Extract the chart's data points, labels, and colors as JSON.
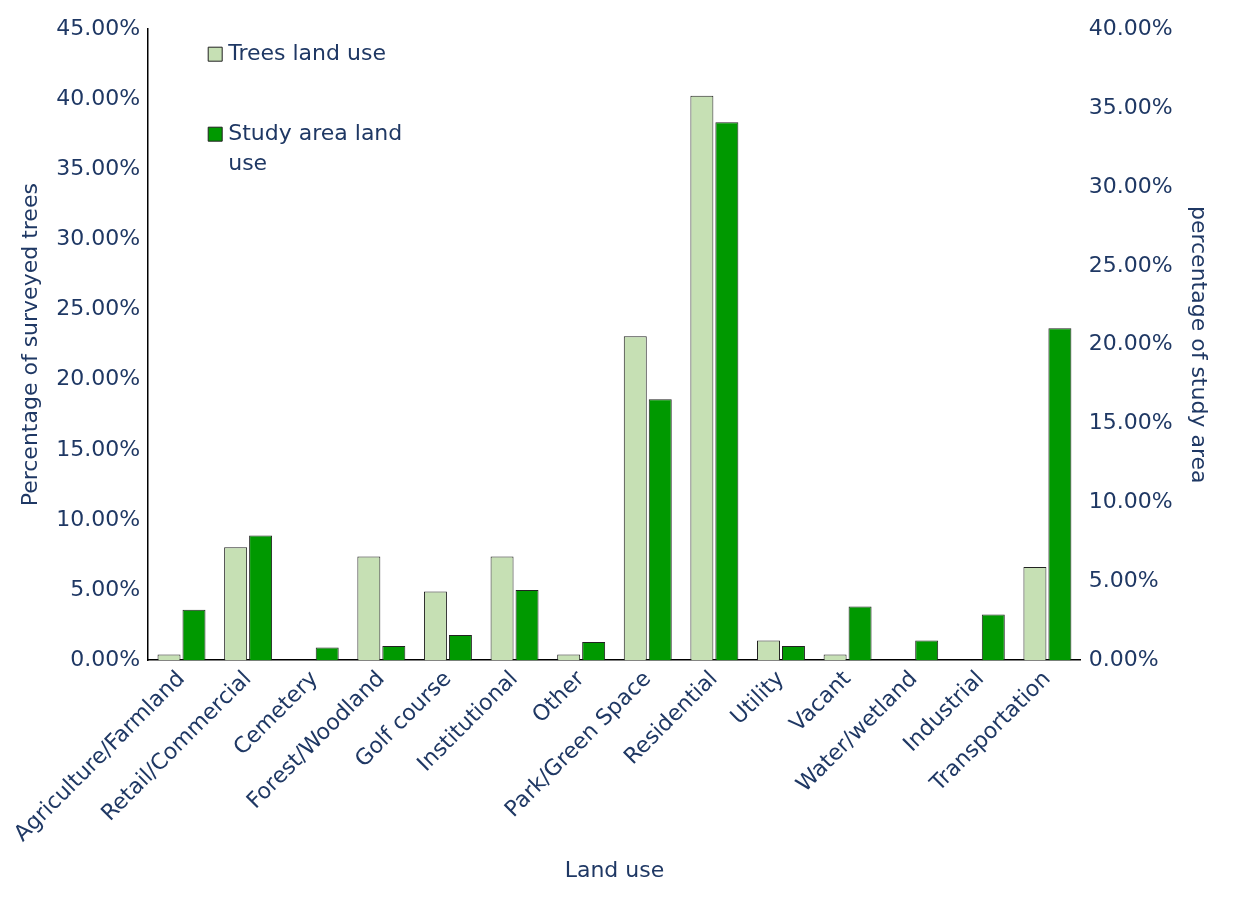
{
  "chart_data": {
    "type": "bar",
    "xlabel": "Land use",
    "ylabel": "Percentage of surveyed trees",
    "y2label": "percentage of study area",
    "categories": [
      "Agriculture/Farmland",
      "Retail/Commercial",
      "Cemetery",
      "Forest/Woodland",
      "Golf course",
      "Institutional",
      "Other",
      "Park/Green Space",
      "Residential",
      "Utility",
      "Vacant",
      "Water/wetland",
      "Industrial",
      "Transportation"
    ],
    "series": [
      {
        "name": "Trees land use",
        "color": "#c6e0b4",
        "values": [
          0.4,
          8.05,
          null,
          7.4,
          4.9,
          7.4,
          0.4,
          23.1,
          40.25,
          1.4,
          0.4,
          null,
          null,
          6.65
        ]
      },
      {
        "name": "Study area land use",
        "color": "#009900",
        "axis": "y2",
        "values": [
          3.2,
          7.9,
          0.8,
          0.9,
          1.6,
          4.45,
          1.15,
          16.55,
          34.1,
          0.9,
          3.4,
          1.25,
          2.9,
          21.05
        ]
      }
    ],
    "ylim": [
      0,
      45
    ],
    "yticks": [
      {
        "value": 0,
        "label": "0.00%"
      },
      {
        "value": 5,
        "label": "5.00%"
      },
      {
        "value": 10,
        "label": "10.00%"
      },
      {
        "value": 15,
        "label": "15.00%"
      },
      {
        "value": 20,
        "label": "20.00%"
      },
      {
        "value": 25,
        "label": "25.00%"
      },
      {
        "value": 30,
        "label": "30.00%"
      },
      {
        "value": 35,
        "label": "35.00%"
      },
      {
        "value": 40,
        "label": "40.00%"
      },
      {
        "value": 45,
        "label": "45.00%"
      }
    ],
    "y2lim": [
      0,
      40
    ],
    "y2ticks": [
      {
        "value": 0,
        "label": "0.00%"
      },
      {
        "value": 5,
        "label": "5.00%"
      },
      {
        "value": 10,
        "label": "10.00%"
      },
      {
        "value": 15,
        "label": "15.00%"
      },
      {
        "value": 20,
        "label": "20.00%"
      },
      {
        "value": 25,
        "label": "25.00%"
      },
      {
        "value": 30,
        "label": "30.00%"
      },
      {
        "value": 35,
        "label": "35.00%"
      },
      {
        "value": 40,
        "label": "40.00%"
      }
    ],
    "grid": false,
    "legend": "top left"
  }
}
